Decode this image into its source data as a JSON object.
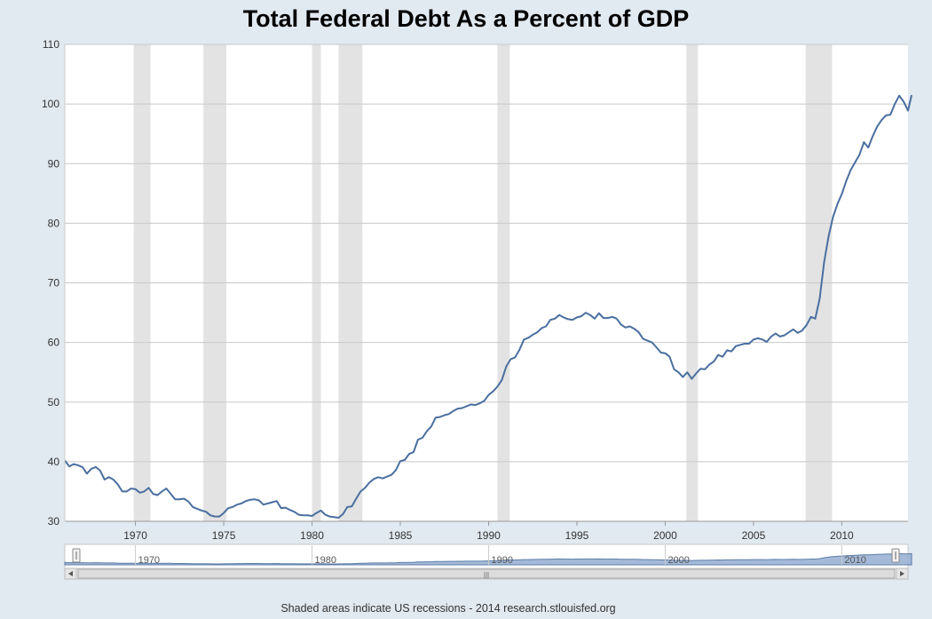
{
  "footer": {
    "note": "Shaded areas indicate US recessions - 2014 research.stlouisfed.org"
  },
  "colors": {
    "line": "#4a6fa0",
    "recession": "#e3e3e3",
    "grid": "#c8c8c8",
    "navigator_fill": "#9cb3d4"
  },
  "navigator": {
    "labels": [
      "1970",
      "1980",
      "1990",
      "2000",
      "2010"
    ],
    "scroll_grip": "|||"
  },
  "chart_data": {
    "type": "line",
    "title": "Total Federal Debt As a Percent of GDP",
    "xlabel": "",
    "ylabel": "",
    "xlim": [
      1966.0,
      2013.75
    ],
    "ylim": [
      30,
      110
    ],
    "yticks": [
      30,
      40,
      50,
      60,
      70,
      80,
      90,
      100,
      110
    ],
    "xticks": [
      1970,
      1975,
      1980,
      1985,
      1990,
      1995,
      2000,
      2005,
      2010
    ],
    "grid": true,
    "recessions": [
      [
        1969.9,
        1970.85
      ],
      [
        1973.85,
        1975.15
      ],
      [
        1980.0,
        1980.5
      ],
      [
        1981.5,
        1982.85
      ],
      [
        1990.5,
        1991.2
      ],
      [
        2001.2,
        2001.85
      ],
      [
        2007.95,
        2009.45
      ]
    ],
    "series": [
      {
        "name": "",
        "points": [
          [
            1966.0,
            40.2
          ],
          [
            1966.25,
            39.2
          ],
          [
            1966.5,
            39.6
          ],
          [
            1966.75,
            39.4
          ],
          [
            1967.0,
            39.1
          ],
          [
            1967.25,
            38.0
          ],
          [
            1967.5,
            38.8
          ],
          [
            1967.75,
            39.1
          ],
          [
            1968.0,
            38.5
          ],
          [
            1968.25,
            37.0
          ],
          [
            1968.5,
            37.4
          ],
          [
            1968.75,
            37.0
          ],
          [
            1969.0,
            36.2
          ],
          [
            1969.25,
            35.0
          ],
          [
            1969.5,
            35.0
          ],
          [
            1969.75,
            35.5
          ],
          [
            1970.0,
            35.4
          ],
          [
            1970.25,
            34.8
          ],
          [
            1970.5,
            35.0
          ],
          [
            1970.75,
            35.6
          ],
          [
            1971.0,
            34.6
          ],
          [
            1971.25,
            34.4
          ],
          [
            1971.5,
            35.0
          ],
          [
            1971.75,
            35.5
          ],
          [
            1972.0,
            34.6
          ],
          [
            1972.25,
            33.7
          ],
          [
            1972.5,
            33.7
          ],
          [
            1972.75,
            33.8
          ],
          [
            1973.0,
            33.3
          ],
          [
            1973.25,
            32.4
          ],
          [
            1973.5,
            32.1
          ],
          [
            1973.75,
            31.8
          ],
          [
            1974.0,
            31.6
          ],
          [
            1974.25,
            31.0
          ],
          [
            1974.5,
            30.8
          ],
          [
            1974.75,
            30.8
          ],
          [
            1975.0,
            31.4
          ],
          [
            1975.25,
            32.2
          ],
          [
            1975.5,
            32.4
          ],
          [
            1975.75,
            32.8
          ],
          [
            1976.0,
            33.0
          ],
          [
            1976.25,
            33.4
          ],
          [
            1976.5,
            33.6
          ],
          [
            1976.75,
            33.7
          ],
          [
            1977.0,
            33.5
          ],
          [
            1977.25,
            32.8
          ],
          [
            1977.5,
            33.0
          ],
          [
            1977.75,
            33.2
          ],
          [
            1978.0,
            33.4
          ],
          [
            1978.25,
            32.2
          ],
          [
            1978.5,
            32.3
          ],
          [
            1978.75,
            31.9
          ],
          [
            1979.0,
            31.6
          ],
          [
            1979.25,
            31.1
          ],
          [
            1979.5,
            31.0
          ],
          [
            1979.75,
            31.0
          ],
          [
            1980.0,
            30.9
          ],
          [
            1980.25,
            31.4
          ],
          [
            1980.5,
            31.8
          ],
          [
            1980.75,
            31.1
          ],
          [
            1981.0,
            30.8
          ],
          [
            1981.25,
            30.7
          ],
          [
            1981.5,
            30.6
          ],
          [
            1981.75,
            31.2
          ],
          [
            1982.0,
            32.4
          ],
          [
            1982.25,
            32.5
          ],
          [
            1982.5,
            33.8
          ],
          [
            1982.75,
            35.0
          ],
          [
            1983.0,
            35.6
          ],
          [
            1983.25,
            36.5
          ],
          [
            1983.5,
            37.1
          ],
          [
            1983.75,
            37.4
          ],
          [
            1984.0,
            37.2
          ],
          [
            1984.25,
            37.5
          ],
          [
            1984.5,
            37.8
          ],
          [
            1984.75,
            38.6
          ],
          [
            1985.0,
            40.1
          ],
          [
            1985.25,
            40.3
          ],
          [
            1985.5,
            41.3
          ],
          [
            1985.75,
            41.6
          ],
          [
            1986.0,
            43.7
          ],
          [
            1986.25,
            44.0
          ],
          [
            1986.5,
            45.1
          ],
          [
            1986.75,
            45.9
          ],
          [
            1987.0,
            47.4
          ],
          [
            1987.25,
            47.5
          ],
          [
            1987.5,
            47.8
          ],
          [
            1987.75,
            48.0
          ],
          [
            1988.0,
            48.5
          ],
          [
            1988.25,
            48.9
          ],
          [
            1988.5,
            49.0
          ],
          [
            1988.75,
            49.3
          ],
          [
            1989.0,
            49.6
          ],
          [
            1989.25,
            49.5
          ],
          [
            1989.5,
            49.8
          ],
          [
            1989.75,
            50.2
          ],
          [
            1990.0,
            51.2
          ],
          [
            1990.25,
            51.8
          ],
          [
            1990.5,
            52.6
          ],
          [
            1990.75,
            53.7
          ],
          [
            1991.0,
            56.0
          ],
          [
            1991.25,
            57.2
          ],
          [
            1991.5,
            57.5
          ],
          [
            1991.75,
            58.8
          ],
          [
            1992.0,
            60.5
          ],
          [
            1992.25,
            60.8
          ],
          [
            1992.5,
            61.3
          ],
          [
            1992.75,
            61.7
          ],
          [
            1993.0,
            62.4
          ],
          [
            1993.25,
            62.7
          ],
          [
            1993.5,
            63.8
          ],
          [
            1993.75,
            64.0
          ],
          [
            1994.0,
            64.6
          ],
          [
            1994.25,
            64.2
          ],
          [
            1994.5,
            63.9
          ],
          [
            1994.75,
            63.8
          ],
          [
            1995.0,
            64.2
          ],
          [
            1995.25,
            64.4
          ],
          [
            1995.5,
            65.0
          ],
          [
            1995.75,
            64.6
          ],
          [
            1996.0,
            64.0
          ],
          [
            1996.25,
            64.9
          ],
          [
            1996.5,
            64.1
          ],
          [
            1996.75,
            64.1
          ],
          [
            1997.0,
            64.3
          ],
          [
            1997.25,
            64.0
          ],
          [
            1997.5,
            63.0
          ],
          [
            1997.75,
            62.5
          ],
          [
            1998.0,
            62.7
          ],
          [
            1998.25,
            62.3
          ],
          [
            1998.5,
            61.7
          ],
          [
            1998.75,
            60.6
          ],
          [
            1999.0,
            60.3
          ],
          [
            1999.25,
            60.0
          ],
          [
            1999.5,
            59.2
          ],
          [
            1999.75,
            58.3
          ],
          [
            2000.0,
            58.2
          ],
          [
            2000.25,
            57.6
          ],
          [
            2000.5,
            55.5
          ],
          [
            2000.75,
            55.0
          ],
          [
            2001.0,
            54.2
          ],
          [
            2001.25,
            55.0
          ],
          [
            2001.5,
            53.9
          ],
          [
            2001.75,
            54.8
          ],
          [
            2002.0,
            55.6
          ],
          [
            2002.25,
            55.5
          ],
          [
            2002.5,
            56.3
          ],
          [
            2002.75,
            56.8
          ],
          [
            2003.0,
            57.9
          ],
          [
            2003.25,
            57.6
          ],
          [
            2003.5,
            58.7
          ],
          [
            2003.75,
            58.5
          ],
          [
            2004.0,
            59.4
          ],
          [
            2004.25,
            59.6
          ],
          [
            2004.5,
            59.8
          ],
          [
            2004.75,
            59.8
          ],
          [
            2005.0,
            60.5
          ],
          [
            2005.25,
            60.7
          ],
          [
            2005.5,
            60.5
          ],
          [
            2005.75,
            60.1
          ],
          [
            2006.0,
            61.0
          ],
          [
            2006.25,
            61.5
          ],
          [
            2006.5,
            61.0
          ],
          [
            2006.75,
            61.2
          ],
          [
            2007.0,
            61.7
          ],
          [
            2007.25,
            62.2
          ],
          [
            2007.5,
            61.6
          ],
          [
            2007.75,
            62.0
          ],
          [
            2008.0,
            62.9
          ],
          [
            2008.25,
            64.3
          ],
          [
            2008.5,
            64.0
          ],
          [
            2008.75,
            67.4
          ],
          [
            2009.0,
            73.5
          ],
          [
            2009.25,
            77.8
          ],
          [
            2009.5,
            81.0
          ],
          [
            2009.75,
            83.2
          ],
          [
            2010.0,
            84.9
          ],
          [
            2010.25,
            87.1
          ],
          [
            2010.5,
            88.9
          ],
          [
            2010.75,
            90.2
          ],
          [
            2011.0,
            91.5
          ],
          [
            2011.25,
            93.6
          ],
          [
            2011.5,
            92.7
          ],
          [
            2011.75,
            94.6
          ],
          [
            2012.0,
            96.2
          ],
          [
            2012.25,
            97.3
          ],
          [
            2012.5,
            98.1
          ],
          [
            2012.75,
            98.2
          ],
          [
            2013.0,
            100.0
          ],
          [
            2013.25,
            101.4
          ],
          [
            2013.5,
            100.4
          ],
          [
            2013.75,
            98.9
          ],
          [
            2013.95,
            101.5
          ]
        ]
      }
    ]
  }
}
